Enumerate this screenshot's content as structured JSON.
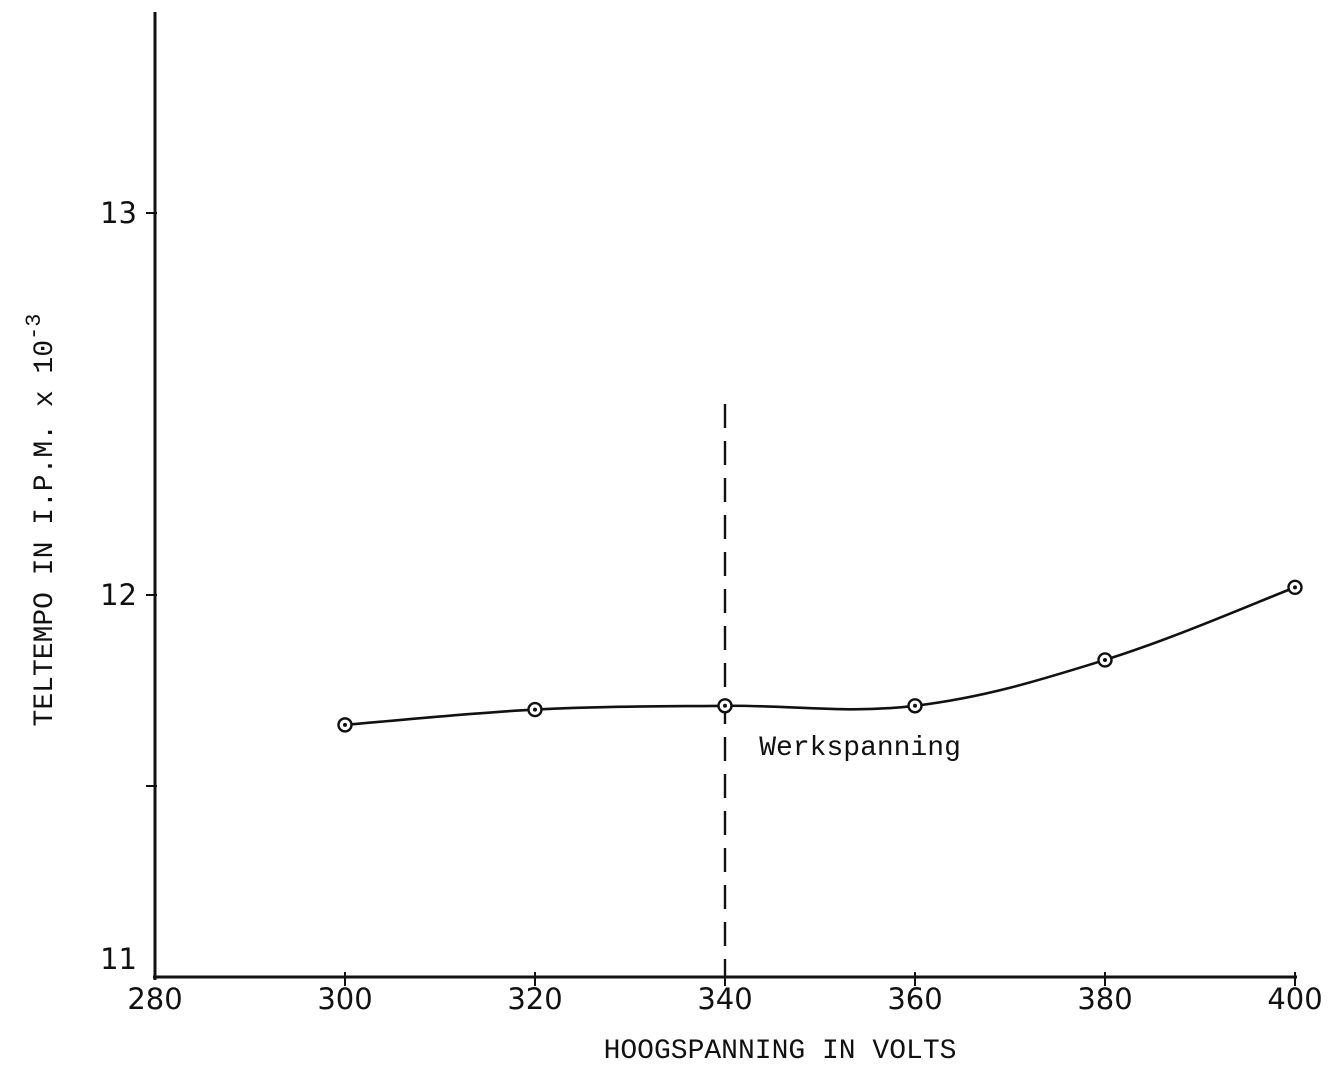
{
  "chart_data": {
    "type": "line",
    "title": "",
    "xlabel": "HOOGSPANNING IN VOLTS",
    "ylabel": "TELTEMPO IN I.P.M. x 10",
    "ylabel_superscript": "-3",
    "xlim": [
      280,
      400
    ],
    "ylim": [
      11,
      13.5
    ],
    "x_ticks": [
      280,
      300,
      320,
      340,
      360,
      380,
      400
    ],
    "x_tick_labels": [
      "280",
      "300",
      "320",
      "340",
      "360",
      "380",
      "400"
    ],
    "y_ticks": [
      11,
      11.5,
      12,
      13
    ],
    "y_tick_labels": [
      "11",
      "",
      "12",
      "13"
    ],
    "grid": false,
    "series": [
      {
        "x": [
          300,
          320,
          340,
          360,
          380,
          400
        ],
        "y": [
          11.66,
          11.7,
          11.71,
          11.71,
          11.83,
          12.02
        ]
      }
    ],
    "reference_line": {
      "x": 340,
      "y_range": [
        11,
        12.5
      ],
      "style": "dashed"
    },
    "annotations": [
      {
        "text": "Werkspanning",
        "x": 341.5,
        "y": 11.55
      }
    ]
  }
}
